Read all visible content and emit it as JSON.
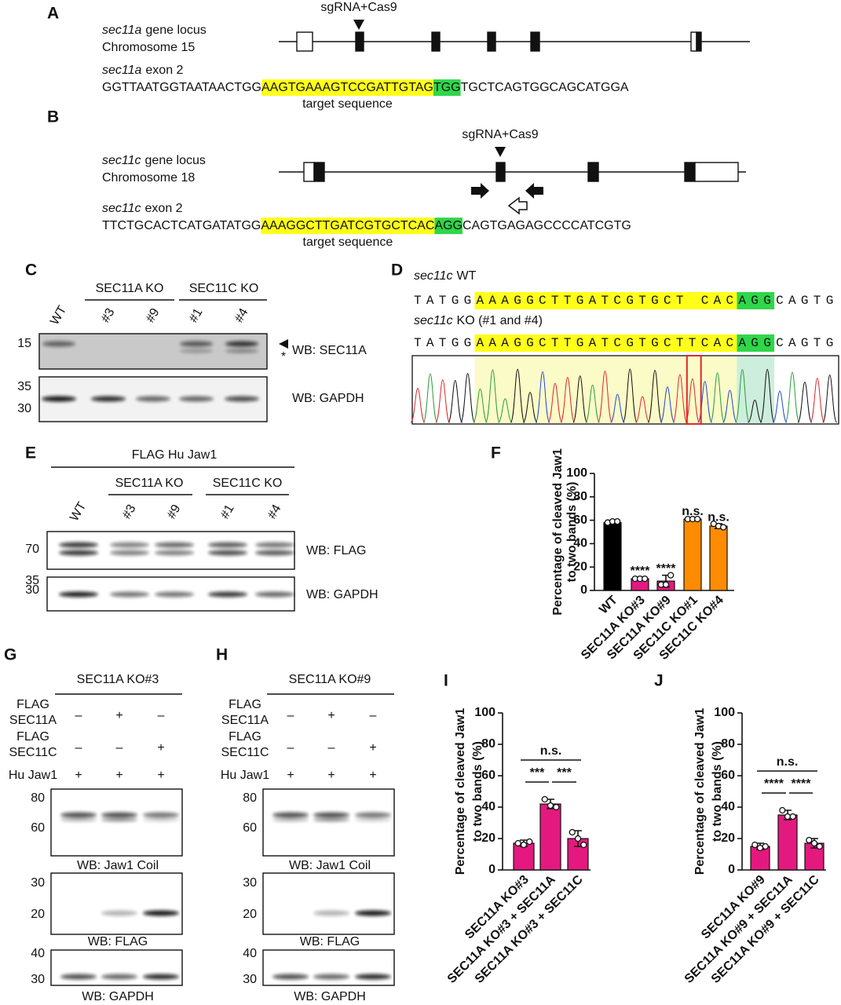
{
  "panel_a": {
    "label": "A",
    "cut": "sgRNA+Cas9",
    "locus": {
      "gene": "sec11a",
      "text": "gene locus"
    },
    "chromosome": "Chromosome 15",
    "exon": {
      "gene": "sec11a",
      "text": "exon 2"
    },
    "sequence": {
      "left": "GGTTAATGGTAATAACTGG",
      "target": "AAGTGAAAGTCCGATTGTAG",
      "pam": "TGG",
      "right": "TGCTCAGTGGCAGCATGGA"
    },
    "target_label": "target sequence"
  },
  "panel_b": {
    "label": "B",
    "cut": "sgRNA+Cas9",
    "locus": {
      "gene": "sec11c",
      "text": "gene locus"
    },
    "chromosome": "Chromosome 18",
    "exon": {
      "gene": "sec11c",
      "text": "exon 2"
    },
    "sequence": {
      "left": "TTCTGCACTCATGATATGG",
      "target": "AAAGGCTTGATCGTGCTCAC",
      "pam": "AGG",
      "right": "CAGTGAGAGCCCCATCGTG"
    },
    "target_label": "target sequence"
  },
  "panel_c": {
    "label": "C",
    "groups": [
      "SEC11A KO",
      "SEC11C KO"
    ],
    "lanes": [
      "WT",
      "#3",
      "#9",
      "#1",
      "#4"
    ],
    "blots": [
      {
        "markers": [
          "15"
        ],
        "label": "WB: SEC11A",
        "asterisk": "*"
      },
      {
        "markers": [
          "35",
          "30"
        ],
        "label": "WB: GAPDH"
      }
    ]
  },
  "panel_d": {
    "label": "D",
    "wt": {
      "name": {
        "gene": "sec11c",
        "text": "WT"
      },
      "sequence": {
        "left": "TATGG",
        "target": "AAAGGCTTGATCGTGCT",
        "target2": "CAC",
        "pam": "AGG",
        "right": "CAGTG"
      }
    },
    "ko": {
      "name": {
        "gene": "sec11c",
        "text": "KO (#1 and #4)"
      },
      "sequence": {
        "left": "TATGG",
        "target": "AAAGGCTTGATCGTGCT",
        "insert": "T",
        "target2": "CAC",
        "pam": "AGG",
        "right": "CAGTG"
      }
    }
  },
  "panel_e": {
    "label": "E",
    "construct": "FLAG Hu Jaw1",
    "groups": [
      "SEC11A KO",
      "SEC11C KO"
    ],
    "lanes": [
      "WT",
      "#3",
      "#9",
      "#1",
      "#4"
    ],
    "blots": [
      {
        "markers": [
          "70"
        ],
        "label": "WB: FLAG"
      },
      {
        "markers": [
          "35",
          "30"
        ],
        "label": "WB: GAPDH"
      }
    ]
  },
  "panel_g": {
    "label": "G",
    "title": "SEC11A KO#3",
    "conditions": [
      {
        "label": [
          "FLAG",
          "SEC11A"
        ],
        "signs": [
          "–",
          "+",
          "–"
        ]
      },
      {
        "label": [
          "FLAG",
          "SEC11C"
        ],
        "signs": [
          "–",
          "–",
          "+"
        ]
      },
      {
        "label": [
          "Hu Jaw1"
        ],
        "signs": [
          "+",
          "+",
          "+"
        ]
      }
    ],
    "blots": [
      {
        "markers": [
          "80",
          "60"
        ],
        "label": "WB: Jaw1 Coil"
      },
      {
        "markers": [
          "30",
          "20"
        ],
        "label": "WB: FLAG"
      },
      {
        "markers": [
          "40",
          "30"
        ],
        "label": "WB: GAPDH"
      }
    ]
  },
  "panel_h": {
    "label": "H",
    "title": "SEC11A KO#9",
    "conditions": [
      {
        "label": [
          "FLAG",
          "SEC11A"
        ],
        "signs": [
          "–",
          "+",
          "–"
        ]
      },
      {
        "label": [
          "FLAG",
          "SEC11C"
        ],
        "signs": [
          "–",
          "–",
          "+"
        ]
      },
      {
        "label": [
          "Hu Jaw1"
        ],
        "signs": [
          "+",
          "+",
          "+"
        ]
      }
    ],
    "blots": [
      {
        "markers": [
          "80",
          "60"
        ],
        "label": "WB: Jaw1 Coil"
      },
      {
        "markers": [
          "30",
          "20"
        ],
        "label": "WB: FLAG"
      },
      {
        "markers": [
          "40",
          "30"
        ],
        "label": "WB: GAPDH"
      }
    ]
  },
  "chart_data": [
    {
      "type": "bar",
      "label": "F",
      "y_label": [
        "Percentage of cleaved Jaw1",
        "to two bands (%)"
      ],
      "categories": [
        "WT",
        "SEC11A KO#3",
        "SEC11A KO#9",
        "SEC11C KO#1",
        "SEC11C KO#4"
      ],
      "values": [
        58,
        10,
        8,
        61,
        55
      ],
      "errors": [
        1,
        1,
        5,
        1,
        2
      ],
      "points": [
        [
          58,
          59,
          59
        ],
        [
          10,
          10,
          10
        ],
        [
          5,
          5,
          13
        ],
        [
          61,
          61,
          61
        ],
        [
          57,
          55,
          54
        ]
      ],
      "colors": [
        "#000000",
        "#e4197f",
        "#e4197f",
        "#ff8c00",
        "#ff8c00"
      ],
      "significance": [
        null,
        "****",
        "****",
        "n.s.",
        "n.s."
      ],
      "ylim": [
        0,
        100
      ],
      "yticks": [
        0,
        20,
        40,
        60,
        80,
        100
      ]
    },
    {
      "type": "bar",
      "label": "I",
      "y_label": [
        "Percentage of cleaved Jaw1",
        "to two bands (%)"
      ],
      "categories": [
        "SEC11A KO#3",
        "SEC11A KO#3 + SEC11A",
        "SEC11A KO#3 + SEC11C"
      ],
      "values": [
        17,
        42,
        20
      ],
      "errors": [
        2,
        3,
        5
      ],
      "points": [
        [
          17,
          16,
          18
        ],
        [
          45,
          41,
          40
        ],
        [
          24,
          20,
          16
        ]
      ],
      "colors": [
        "#e4197f",
        "#e4197f",
        "#e4197f"
      ],
      "comparisons": [
        {
          "from": "SEC11A KO#3",
          "to": "SEC11A KO#3 + SEC11A",
          "label": "***"
        },
        {
          "from": "SEC11A KO#3 + SEC11A",
          "to": "SEC11A KO#3 + SEC11C",
          "label": "***"
        },
        {
          "from": "SEC11A KO#3",
          "to": "SEC11A KO#3 + SEC11C",
          "label": "n.s."
        }
      ],
      "ylim": [
        0,
        100
      ],
      "yticks": [
        0,
        20,
        40,
        60,
        80,
        100
      ]
    },
    {
      "type": "bar",
      "label": "J",
      "y_label": [
        "Percentage of cleaved Jaw1",
        "to two bands (%)"
      ],
      "categories": [
        "SEC11A KO#9",
        "SEC11A KO#9 + SEC11A",
        "SEC11A KO#9 + SEC11C"
      ],
      "values": [
        15,
        35,
        17
      ],
      "errors": [
        2,
        3,
        3
      ],
      "points": [
        [
          16,
          14,
          15
        ],
        [
          38,
          34,
          34
        ],
        [
          19,
          17,
          15
        ]
      ],
      "colors": [
        "#e4197f",
        "#e4197f",
        "#e4197f"
      ],
      "comparisons": [
        {
          "from": "SEC11A KO#9",
          "to": "SEC11A KO#9 + SEC11A",
          "label": "****"
        },
        {
          "from": "SEC11A KO#9 + SEC11A",
          "to": "SEC11A KO#9 + SEC11C",
          "label": "****"
        },
        {
          "from": "SEC11A KO#9",
          "to": "SEC11A KO#9 + SEC11C",
          "label": "n.s."
        }
      ],
      "ylim": [
        0,
        100
      ],
      "yticks": [
        0,
        20,
        40,
        60,
        80,
        100
      ]
    }
  ]
}
